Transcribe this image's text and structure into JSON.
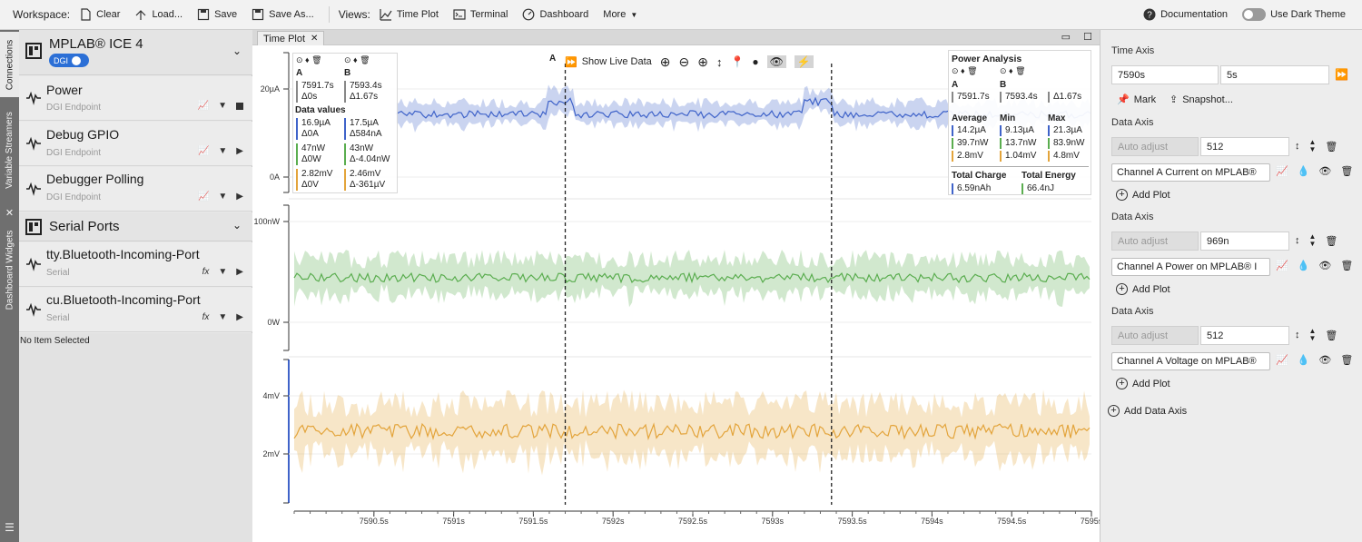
{
  "toolbar": {
    "workspace_label": "Workspace:",
    "clear": "Clear",
    "load": "Load...",
    "save": "Save",
    "save_as": "Save As...",
    "views_label": "Views:",
    "time_plot": "Time Plot",
    "terminal": "Terminal",
    "dashboard": "Dashboard",
    "more": "More",
    "documentation": "Documentation",
    "dark_theme": "Use Dark Theme"
  },
  "vtabs": {
    "connections": "Connections",
    "variable_streamers": "Variable Streamers",
    "dashboard_widgets": "Dashboard Widgets"
  },
  "left": {
    "device": {
      "name": "MPLAB® ICE 4",
      "badge": "DGI"
    },
    "items": [
      {
        "title": "Power",
        "sub": "DGI Endpoint"
      },
      {
        "title": "Debug GPIO",
        "sub": "DGI Endpoint"
      },
      {
        "title": "Debugger Polling",
        "sub": "DGI Endpoint"
      }
    ],
    "serial": {
      "name": "Serial Ports"
    },
    "ports": [
      {
        "title": "tty.Bluetooth-Incoming-Port",
        "sub": "Serial"
      },
      {
        "title": "cu.Bluetooth-Incoming-Port",
        "sub": "Serial"
      }
    ],
    "status": "No Item Selected"
  },
  "tab": {
    "label": "Time Plot"
  },
  "chart_toolbar": {
    "live": "Show Live Data"
  },
  "cursors": {
    "a_label": "A",
    "b_label": "B",
    "a_time": "7591.7s",
    "a_delta": "Δ0s",
    "b_time": "7593.4s",
    "b_delta": "Δ1.67s",
    "data_values": "Data values",
    "rows": [
      {
        "a": "16.9µA",
        "a_d": "Δ0A",
        "b": "17.5µA",
        "b_d": "Δ584nA",
        "color": "#3f63c9"
      },
      {
        "a": "47nW",
        "a_d": "Δ0W",
        "b": "43nW",
        "b_d": "Δ-4.04nW",
        "color": "#5aad4f"
      },
      {
        "a": "2.82mV",
        "a_d": "Δ0V",
        "b": "2.46mV",
        "b_d": "Δ-361µV",
        "color": "#e3a43b"
      }
    ]
  },
  "power_analysis": {
    "title": "Power Analysis",
    "a": "A",
    "b": "B",
    "a_time": "7591.7s",
    "b_time": "7593.4s",
    "delta": "Δ1.67s",
    "headers": [
      "Average",
      "Min",
      "Max"
    ],
    "rows": [
      [
        "14.2µA",
        "9.13µA",
        "21.3µA"
      ],
      [
        "39.7nW",
        "13.7nW",
        "83.9nW"
      ],
      [
        "2.8mV",
        "1.04mV",
        "4.8mV"
      ]
    ],
    "charge_label": "Total Charge",
    "energy_label": "Total Energy",
    "charge": "6.59nAh",
    "energy": "66.4nJ"
  },
  "chart_data": {
    "type": "line",
    "x": {
      "unit": "s",
      "range": [
        7590.0,
        7595.0
      ],
      "ticks": [
        "7590.5s",
        "7591s",
        "7591.5s",
        "7592s",
        "7592.5s",
        "7593s",
        "7593.5s",
        "7594s",
        "7594.5s",
        "7595s"
      ]
    },
    "cursor_a": 7591.7,
    "cursor_b": 7593.37,
    "panels": [
      {
        "series": "Channel A Current on MPLAB®",
        "color": "#3f63c9",
        "y_ticks": [
          "20µA",
          "0A"
        ],
        "mean": 16.0,
        "range": [
          0,
          20
        ]
      },
      {
        "series": "Channel A Power on MPLAB®",
        "color": "#5aad4f",
        "y_ticks": [
          "100nW",
          "0W"
        ],
        "mean": 45,
        "range": [
          0,
          100
        ]
      },
      {
        "series": "Channel A Voltage on MPLAB®",
        "color": "#e3a43b",
        "y_ticks": [
          "4mV",
          "2mV"
        ],
        "mean": 2.9,
        "range": [
          2,
          4
        ]
      }
    ]
  },
  "right": {
    "time_axis": "Time Axis",
    "time_start": "7590s",
    "time_span": "5s",
    "mark": "Mark",
    "snapshot": "Snapshot...",
    "data_axis": "Data Axis",
    "auto_adjust": "Auto adjust",
    "axes": [
      {
        "value": "512",
        "channel": "Channel A Current on MPLAB®",
        "color": "#2b6fd6"
      },
      {
        "value": "969n",
        "channel": "Channel A Power on MPLAB® I",
        "color": "#3aa34a"
      },
      {
        "value": "512",
        "channel": "Channel A Voltage on MPLAB®",
        "color": "#e3a43b"
      }
    ],
    "add_plot": "Add Plot",
    "add_data_axis": "Add Data Axis"
  }
}
